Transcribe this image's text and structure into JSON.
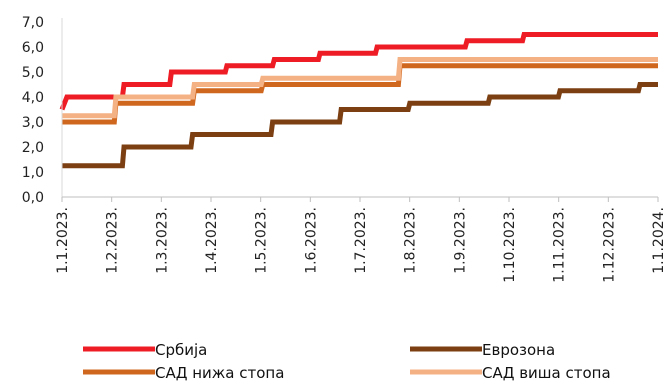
{
  "chart_data": {
    "type": "line",
    "title": "",
    "xlabel": "",
    "ylabel": "",
    "ylim": [
      0,
      7
    ],
    "y_ticks": [
      "0,0",
      "1,0",
      "2,0",
      "3,0",
      "4,0",
      "5,0",
      "6,0",
      "7,0"
    ],
    "x_ticks": [
      "1.1.2023.",
      "1.2.2023.",
      "1.3.2023.",
      "1.4.2023.",
      "1.5.2023.",
      "1.6.2023.",
      "1.7.2023.",
      "1.8.2023.",
      "1.9.2023.",
      "1.10.2023.",
      "1.11.2023.",
      "1.12.2023.",
      "1.1.2024."
    ],
    "xlim": [
      "2023-01-01",
      "2024-01-01"
    ],
    "grid": false,
    "legend_position": "bottom",
    "series": [
      {
        "name": "Србија",
        "color": "#ee1c25",
        "points": [
          [
            "2023-01-01",
            3.5
          ],
          [
            "2023-01-04",
            4.0
          ],
          [
            "2023-02-07",
            4.0
          ],
          [
            "2023-02-08",
            4.5
          ],
          [
            "2023-03-08",
            4.5
          ],
          [
            "2023-03-09",
            5.0
          ],
          [
            "2023-04-11",
            5.0
          ],
          [
            "2023-04-12",
            5.25
          ],
          [
            "2023-05-10",
            5.25
          ],
          [
            "2023-05-11",
            5.5
          ],
          [
            "2023-06-07",
            5.5
          ],
          [
            "2023-06-08",
            5.75
          ],
          [
            "2023-07-12",
            5.75
          ],
          [
            "2023-07-13",
            6.0
          ],
          [
            "2023-09-05",
            6.0
          ],
          [
            "2023-09-06",
            6.25
          ],
          [
            "2023-10-10",
            6.25
          ],
          [
            "2023-10-11",
            6.5
          ],
          [
            "2024-01-01",
            6.5
          ]
        ]
      },
      {
        "name": "Еврозона",
        "color": "#7b3f12",
        "points": [
          [
            "2023-01-01",
            1.25
          ],
          [
            "2023-02-07",
            1.25
          ],
          [
            "2023-02-08",
            2.0
          ],
          [
            "2023-03-21",
            2.0
          ],
          [
            "2023-03-22",
            2.5
          ],
          [
            "2023-05-09",
            2.5
          ],
          [
            "2023-05-10",
            3.0
          ],
          [
            "2023-06-20",
            3.0
          ],
          [
            "2023-06-21",
            3.5
          ],
          [
            "2023-08-01",
            3.5
          ],
          [
            "2023-08-02",
            3.75
          ],
          [
            "2023-09-19",
            3.75
          ],
          [
            "2023-09-20",
            4.0
          ],
          [
            "2023-11-01",
            4.0
          ],
          [
            "2023-11-02",
            4.25
          ],
          [
            "2023-12-20",
            4.25
          ],
          [
            "2023-12-21",
            4.5
          ],
          [
            "2024-01-01",
            4.5
          ]
        ]
      },
      {
        "name": "САД нижа стопа",
        "color": "#d0671f",
        "points": [
          [
            "2023-01-01",
            3.0
          ],
          [
            "2023-02-02",
            3.0
          ],
          [
            "2023-02-03",
            3.75
          ],
          [
            "2023-03-22",
            3.75
          ],
          [
            "2023-03-23",
            4.25
          ],
          [
            "2023-05-03",
            4.25
          ],
          [
            "2023-05-04",
            4.5
          ],
          [
            "2023-07-26",
            4.5
          ],
          [
            "2023-07-27",
            5.25
          ],
          [
            "2024-01-01",
            5.25
          ]
        ]
      },
      {
        "name": "САД виша стопа",
        "color": "#f4b183",
        "points": [
          [
            "2023-01-01",
            3.25
          ],
          [
            "2023-02-02",
            3.25
          ],
          [
            "2023-02-03",
            4.0
          ],
          [
            "2023-03-22",
            4.0
          ],
          [
            "2023-03-23",
            4.5
          ],
          [
            "2023-05-03",
            4.5
          ],
          [
            "2023-05-04",
            4.75
          ],
          [
            "2023-07-26",
            4.75
          ],
          [
            "2023-07-27",
            5.5
          ],
          [
            "2024-01-01",
            5.5
          ]
        ]
      }
    ]
  }
}
